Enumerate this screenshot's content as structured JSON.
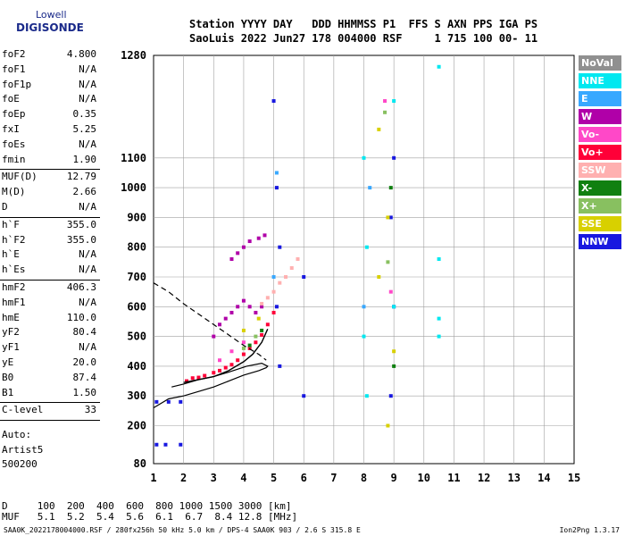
{
  "logo": {
    "line1": "Lowell",
    "line2": "DIGISONDE"
  },
  "header": {
    "line1": "Station YYYY DAY   DDD HHMMSS P1  FFS S AXN PPS IGA PS",
    "line2": "SaoLuis 2022 Jun27 178 004000 RSF     1 715 100 00- 11"
  },
  "params": [
    {
      "name": "foF2",
      "value": "4.800"
    },
    {
      "name": "foF1",
      "value": "N/A"
    },
    {
      "name": "foF1p",
      "value": "N/A"
    },
    {
      "name": "foE",
      "value": "N/A"
    },
    {
      "name": "foEp",
      "value": "0.35"
    },
    {
      "name": "fxI",
      "value": "5.25"
    },
    {
      "name": "foEs",
      "value": "N/A"
    },
    {
      "name": "fmin",
      "value": "1.90"
    },
    {
      "name": "MUF(D)",
      "value": "12.79",
      "sep": true
    },
    {
      "name": "M(D)",
      "value": "2.66"
    },
    {
      "name": "D",
      "value": "N/A"
    },
    {
      "name": "h`F",
      "value": "355.0",
      "sep": true
    },
    {
      "name": "h`F2",
      "value": "355.0"
    },
    {
      "name": "h`E",
      "value": "N/A"
    },
    {
      "name": "h`Es",
      "value": "N/A"
    },
    {
      "name": "hmF2",
      "value": "406.3",
      "sep": true
    },
    {
      "name": "hmF1",
      "value": "N/A"
    },
    {
      "name": "hmE",
      "value": "110.0"
    },
    {
      "name": "yF2",
      "value": "80.4"
    },
    {
      "name": "yF1",
      "value": "N/A"
    },
    {
      "name": "yE",
      "value": "20.0"
    },
    {
      "name": "B0",
      "value": "87.4"
    },
    {
      "name": "B1",
      "value": "1.50"
    },
    {
      "name": "C-level",
      "value": "33",
      "sep": true
    }
  ],
  "auto": {
    "line1": "Auto:",
    "line2": "Artist5",
    "line3": "500200"
  },
  "muf_table": {
    "d_row": "D     100  200  400  600  800 1000 1500 3000 [km]",
    "muf_row": "MUF   5.1  5.2  5.4  5.6  6.1  6.7  8.4 12.8 [MHz]"
  },
  "footer": "SAA0K_2022178004000.RSF / 280fx256h 50 kHz 5.0 km / DPS-4 SAA0K 903 / 2.6 S 315.8 E",
  "version": "Ion2Png 1.3.17",
  "legend": [
    {
      "label": "NoVal",
      "color": "#909090"
    },
    {
      "label": "NNE",
      "color": "#00e8f0"
    },
    {
      "label": "E",
      "color": "#38a8ff"
    },
    {
      "label": "W",
      "color": "#b000a8"
    },
    {
      "label": "Vo-",
      "color": "#ff48c8"
    },
    {
      "label": "Vo+",
      "color": "#ff0038"
    },
    {
      "label": "SSW",
      "color": "#ffb0b0"
    },
    {
      "label": "X-",
      "color": "#108010"
    },
    {
      "label": "X+",
      "color": "#88c060"
    },
    {
      "label": "SSE",
      "color": "#d8d000"
    },
    {
      "label": "NNW",
      "color": "#1818e0"
    }
  ],
  "chart_data": {
    "type": "scatter",
    "xlabel": "",
    "ylabel": "",
    "xlim": [
      1,
      15
    ],
    "ylim": [
      80,
      1280
    ],
    "xticks": [
      "1",
      "2",
      "3",
      "4",
      "5",
      "6",
      "7",
      "8",
      "9",
      "10",
      "11",
      "12",
      "13",
      "14",
      "15"
    ],
    "yticks": [
      "80",
      "200",
      "300",
      "400",
      "500",
      "600",
      "700",
      "800",
      "900",
      "1000",
      "1100",
      "1280"
    ],
    "grid": true,
    "traces": [
      {
        "name": "Vo+",
        "color": "#ff0038",
        "points": [
          [
            2.1,
            350
          ],
          [
            2.3,
            360
          ],
          [
            2.5,
            362
          ],
          [
            2.7,
            368
          ],
          [
            3.0,
            378
          ],
          [
            3.2,
            385
          ],
          [
            3.4,
            395
          ],
          [
            3.6,
            405
          ],
          [
            3.8,
            420
          ],
          [
            4.0,
            440
          ],
          [
            4.2,
            460
          ],
          [
            4.4,
            480
          ],
          [
            4.6,
            505
          ],
          [
            4.8,
            540
          ],
          [
            5.0,
            580
          ]
        ]
      },
      {
        "name": "W",
        "color": "#b000a8",
        "points": [
          [
            3.0,
            500
          ],
          [
            3.2,
            540
          ],
          [
            3.4,
            560
          ],
          [
            3.6,
            580
          ],
          [
            3.8,
            600
          ],
          [
            4.0,
            620
          ],
          [
            4.2,
            600
          ],
          [
            4.4,
            580
          ],
          [
            4.6,
            600
          ],
          [
            3.6,
            760
          ],
          [
            3.8,
            780
          ],
          [
            4.0,
            800
          ],
          [
            4.2,
            820
          ],
          [
            4.5,
            830
          ],
          [
            4.7,
            840
          ]
        ]
      },
      {
        "name": "SSW",
        "color": "#ffb0b0",
        "points": [
          [
            4.6,
            610
          ],
          [
            4.8,
            630
          ],
          [
            5.0,
            650
          ],
          [
            5.2,
            680
          ],
          [
            5.4,
            700
          ],
          [
            5.6,
            730
          ],
          [
            5.8,
            760
          ]
        ]
      },
      {
        "name": "NNW",
        "color": "#1818e0",
        "points": [
          [
            1.1,
            280
          ],
          [
            1.5,
            280
          ],
          [
            1.9,
            280
          ],
          [
            1.1,
            140
          ],
          [
            1.4,
            140
          ],
          [
            1.9,
            140
          ],
          [
            5.0,
            1200
          ],
          [
            5.1,
            1000
          ],
          [
            5.2,
            800
          ],
          [
            5.1,
            600
          ],
          [
            5.2,
            400
          ],
          [
            6.0,
            700
          ],
          [
            6.0,
            300
          ],
          [
            9.0,
            1100
          ],
          [
            8.9,
            900
          ],
          [
            9.0,
            600
          ],
          [
            8.9,
            300
          ]
        ]
      },
      {
        "name": "NNE",
        "color": "#00e8f0",
        "points": [
          [
            8.0,
            1100
          ],
          [
            8.1,
            800
          ],
          [
            8.0,
            500
          ],
          [
            8.1,
            300
          ],
          [
            9.0,
            1200
          ],
          [
            9.0,
            600
          ],
          [
            10.5,
            1260
          ],
          [
            10.5,
            760
          ],
          [
            10.5,
            560
          ],
          [
            10.5,
            500
          ]
        ]
      },
      {
        "name": "SSE",
        "color": "#d8d000",
        "points": [
          [
            8.5,
            1150
          ],
          [
            8.8,
            900
          ],
          [
            8.5,
            700
          ],
          [
            9.0,
            450
          ],
          [
            8.8,
            200
          ],
          [
            4.0,
            520
          ],
          [
            4.5,
            560
          ]
        ]
      },
      {
        "name": "X-",
        "color": "#108010",
        "points": [
          [
            4.2,
            470
          ],
          [
            4.6,
            520
          ],
          [
            8.9,
            1000
          ],
          [
            9.0,
            400
          ]
        ]
      },
      {
        "name": "X+",
        "color": "#88c060",
        "points": [
          [
            4.0,
            460
          ],
          [
            4.4,
            500
          ],
          [
            8.7,
            1180
          ],
          [
            8.8,
            750
          ]
        ]
      },
      {
        "name": "Vo-",
        "color": "#ff48c8",
        "points": [
          [
            3.2,
            420
          ],
          [
            3.6,
            450
          ],
          [
            4.0,
            480
          ],
          [
            8.7,
            1200
          ],
          [
            8.9,
            650
          ]
        ]
      },
      {
        "name": "E",
        "color": "#38a8ff",
        "points": [
          [
            5.1,
            1050
          ],
          [
            5.0,
            700
          ],
          [
            8.2,
            1000
          ],
          [
            8.0,
            600
          ]
        ]
      }
    ],
    "profile_curve": [
      [
        1.0,
        260
      ],
      [
        1.5,
        290
      ],
      [
        2.0,
        300
      ],
      [
        2.5,
        315
      ],
      [
        3.0,
        330
      ],
      [
        3.5,
        350
      ],
      [
        4.0,
        370
      ],
      [
        4.5,
        385
      ],
      [
        4.75,
        395
      ],
      [
        4.8,
        400
      ],
      [
        4.6,
        410
      ],
      [
        4.1,
        400
      ],
      [
        3.5,
        380
      ],
      [
        3.0,
        365
      ],
      [
        2.5,
        355
      ],
      [
        2.0,
        340
      ],
      [
        1.6,
        330
      ]
    ],
    "profile_dashed": [
      [
        1.0,
        680
      ],
      [
        1.5,
        650
      ],
      [
        2.0,
        610
      ],
      [
        2.5,
        575
      ],
      [
        3.0,
        540
      ],
      [
        3.5,
        505
      ],
      [
        4.0,
        470
      ],
      [
        4.5,
        440
      ],
      [
        4.75,
        420
      ]
    ],
    "trace_fit": [
      [
        2.0,
        345
      ],
      [
        2.5,
        355
      ],
      [
        3.0,
        365
      ],
      [
        3.5,
        385
      ],
      [
        4.0,
        415
      ],
      [
        4.3,
        440
      ],
      [
        4.6,
        480
      ],
      [
        4.8,
        525
      ]
    ]
  }
}
